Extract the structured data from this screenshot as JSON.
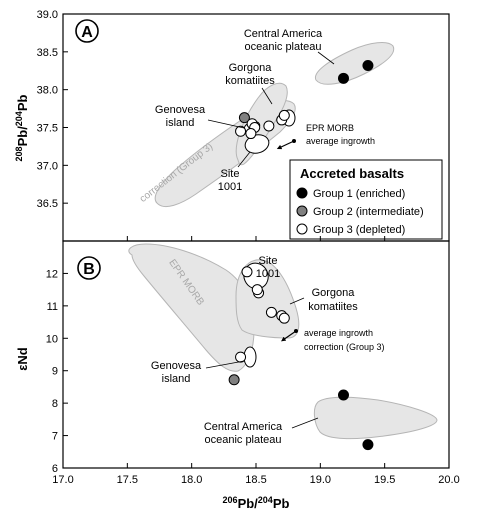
{
  "chart_data": [
    {
      "panel": "A",
      "type": "scatter",
      "ylabel": "208Pb/204Pb",
      "ylabel_main": "Pb/",
      "ylabel_sup1": "208",
      "ylabel_sup2": "204",
      "ylabel_end": "Pb",
      "xlim": [
        17.0,
        20.0
      ],
      "ylim": [
        36.0,
        39.0
      ],
      "yticks": [
        "36.5",
        "37.0",
        "37.5",
        "38.0",
        "38.5",
        "39.0"
      ],
      "ytick_values": [
        36.5,
        37.0,
        37.5,
        38.0,
        38.5,
        39.0
      ],
      "series": [
        {
          "name": "Group 1 (enriched)",
          "color": "#000000",
          "x": [
            19.18,
            19.37
          ],
          "y": [
            38.15,
            38.32
          ]
        },
        {
          "name": "Group 2 (intermediate)",
          "color": "#808080",
          "x": [
            18.41
          ],
          "y": [
            37.63
          ]
        },
        {
          "name": "Group 3 (depleted)",
          "color": "#ffffff",
          "x": [
            18.38,
            18.47,
            18.49,
            18.46,
            18.6,
            18.7,
            18.72
          ],
          "y": [
            37.45,
            37.55,
            37.5,
            37.42,
            37.52,
            37.6,
            37.66
          ]
        }
      ],
      "fields": [
        {
          "label": "EPR MORB",
          "color": "#e6e6e6"
        },
        {
          "label": "Central America oceanic plateau",
          "color": "#e6e6e6"
        },
        {
          "label": "Gorgona komatiites",
          "color": "#e6e6e6"
        }
      ],
      "annotations": [
        "Central America",
        "oceanic plateau",
        "Gorgona",
        "komatiites",
        "Genovesa",
        "island",
        "Site",
        "1001",
        "EPR MORB",
        "average ingrowth",
        "correction (Group 3)"
      ],
      "legend": {
        "title": "Accreted basalts",
        "placement": "bottom-right",
        "entries": [
          "Group 1 (enriched)",
          "Group 2 (intermediate)",
          "Group 3 (depleted)"
        ]
      }
    },
    {
      "panel": "B",
      "type": "scatter",
      "ylabel": "εNd",
      "xlabel": "206Pb/204Pb",
      "xlabel_sup1": "206",
      "xlabel_mid": "Pb/",
      "xlabel_sup2": "204",
      "xlabel_end": "Pb",
      "xlim": [
        17.0,
        20.0
      ],
      "ylim": [
        6,
        13
      ],
      "xticks": [
        "17.0",
        "17.5",
        "18.0",
        "18.5",
        "19.0",
        "19.5",
        "20.0"
      ],
      "xtick_values": [
        17.0,
        17.5,
        18.0,
        18.5,
        19.0,
        19.5,
        20.0
      ],
      "yticks": [
        "6",
        "7",
        "8",
        "9",
        "10",
        "11",
        "12"
      ],
      "ytick_values": [
        6,
        7,
        8,
        9,
        10,
        11,
        12
      ],
      "series": [
        {
          "name": "Group 1 (enriched)",
          "color": "#000000",
          "x": [
            19.18,
            19.37
          ],
          "y": [
            8.25,
            6.72
          ]
        },
        {
          "name": "Group 2 (intermediate)",
          "color": "#808080",
          "x": [
            18.33
          ],
          "y": [
            8.72
          ]
        },
        {
          "name": "Group 3 (depleted)",
          "color": "#ffffff",
          "x": [
            18.38,
            18.43,
            18.52,
            18.51,
            18.62,
            18.7,
            18.72
          ],
          "y": [
            9.42,
            12.05,
            11.4,
            11.5,
            10.8,
            10.7,
            10.62
          ]
        }
      ],
      "fields": [
        {
          "label": "EPR MORB",
          "color": "#e6e6e6"
        },
        {
          "label": "Central America oceanic plateau",
          "color": "#e6e6e6"
        },
        {
          "label": "Gorgona komatiites",
          "color": "#e6e6e6"
        }
      ],
      "annotations": [
        "Site",
        "1001",
        "Gorgona",
        "komatiites",
        "EPR MORB",
        "Genovesa",
        "island",
        "Central America",
        "oceanic plateau",
        "average ingrowth",
        "correction (Group 3)"
      ]
    }
  ]
}
